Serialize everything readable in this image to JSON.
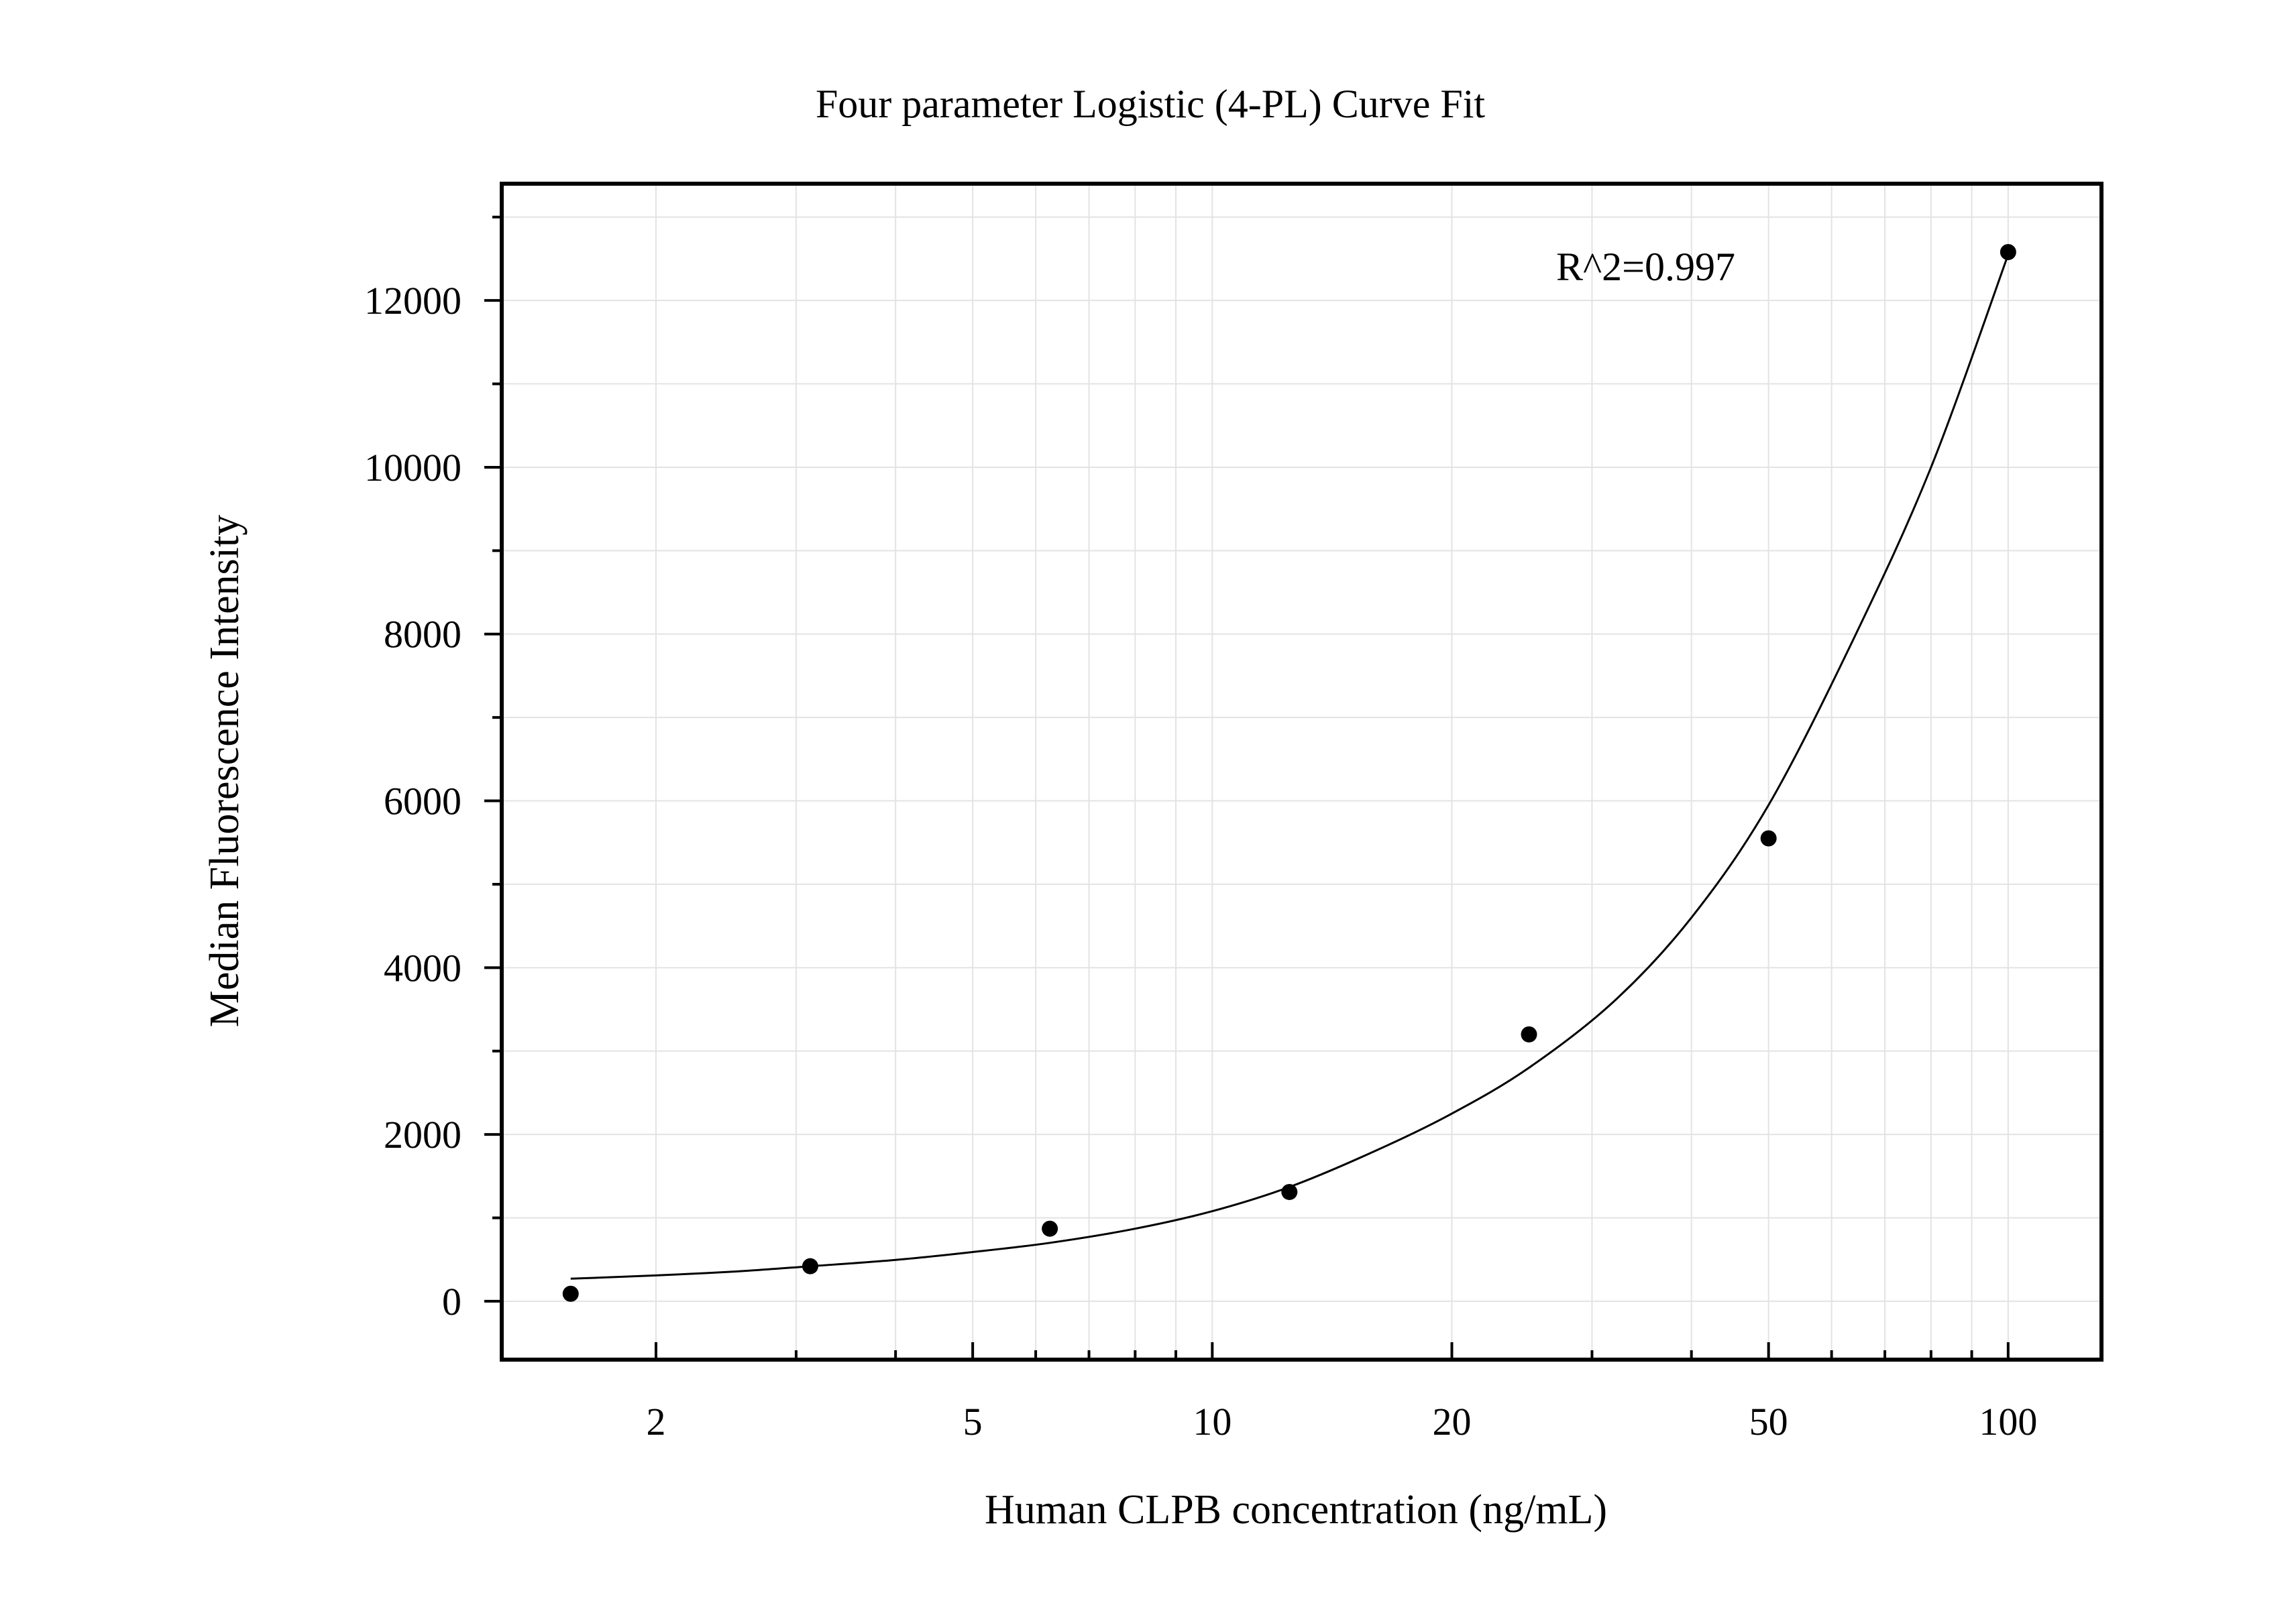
{
  "chart_data": {
    "type": "scatter",
    "title": "Four parameter Logistic (4-PL) Curve Fit",
    "xlabel": "Human CLPB concentration (ng/mL)",
    "ylabel": "Median Fluorescence Intensity",
    "annotation": "R^2=0.997",
    "x_scale": "log",
    "xlim": [
      1.28,
      131
    ],
    "ylim": [
      -700,
      13400
    ],
    "x_ticks": [
      2,
      5,
      10,
      20,
      50,
      100
    ],
    "x_tick_labels": [
      "2",
      "5",
      "10",
      "20",
      "50",
      "100"
    ],
    "y_ticks": [
      0,
      2000,
      4000,
      6000,
      8000,
      10000,
      12000
    ],
    "y_tick_labels": [
      "0",
      "2000",
      "4000",
      "6000",
      "8000",
      "10000",
      "12000"
    ],
    "grid": true,
    "series": [
      {
        "kind": "points",
        "x": [
          1.5625,
          3.125,
          6.25,
          12.5,
          25,
          50,
          100
        ],
        "y": [
          90,
          420,
          870,
          1310,
          3200,
          5550,
          12580
        ]
      },
      {
        "kind": "fit",
        "x": [
          1.5625,
          2,
          2.5,
          3.125,
          4,
          5,
          6.25,
          8,
          10,
          12.5,
          16,
          20,
          25,
          32,
          40,
          50,
          64,
          80,
          100
        ],
        "y": [
          270,
          310,
          355,
          420,
          495,
          590,
          700,
          870,
          1080,
          1370,
          1800,
          2250,
          2800,
          3600,
          4600,
          5950,
          7950,
          10000,
          12550
        ]
      }
    ],
    "colors": {
      "axis": "#000000",
      "grid": "#e3e3e3",
      "points": "#000000",
      "curve": "#000000"
    }
  }
}
